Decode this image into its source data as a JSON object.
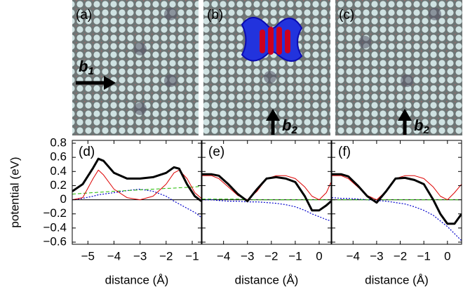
{
  "panels": [
    {
      "label": "(a)",
      "arrow_label": "b",
      "arrow_subscript": "1"
    },
    {
      "label": "(b)",
      "arrow_label": "b",
      "arrow_subscript": "2"
    },
    {
      "label": "(c)",
      "arrow_label": "b",
      "arrow_subscript": "2"
    }
  ],
  "chart_data": [
    {
      "type": "line",
      "label": "(d)",
      "ylabel": "potential (eV)",
      "xlabel": "distance (Å)",
      "xlim": [
        -5.6,
        -0.65
      ],
      "ylim": [
        -0.63,
        0.84
      ],
      "hline": 0,
      "xticks": [
        {
          "value": -5,
          "label": "−5"
        },
        {
          "value": -4,
          "label": "−4"
        },
        {
          "value": -3,
          "label": "−3"
        },
        {
          "value": -2,
          "label": "−2"
        },
        {
          "value": -1,
          "label": "−1"
        }
      ],
      "yticks": [
        0.8,
        0.6,
        0.4,
        0.2,
        0,
        {
          "value": -0.2,
          "label": "−0.2"
        },
        {
          "value": -0.4,
          "label": "−0.4"
        },
        {
          "value": -0.6,
          "label": "−0.6"
        }
      ],
      "ytick_labels": true,
      "x": [
        -5.6,
        -5.2,
        -4.8,
        -4.6,
        -4.4,
        -4.0,
        -3.5,
        -3.0,
        -2.5,
        -2.0,
        -1.7,
        -1.5,
        -1.2,
        -0.9,
        -0.65
      ],
      "series": [
        {
          "color": "#0000cc",
          "style": "dotted",
          "width": 1.2,
          "values": [
            0.0,
            0.02,
            0.05,
            0.07,
            0.08,
            0.1,
            0.13,
            0.15,
            0.12,
            0.05,
            -0.02,
            -0.06,
            -0.12,
            -0.18,
            -0.25
          ]
        },
        {
          "color": "#22bb00",
          "style": "dashed",
          "width": 1,
          "values": [
            0.08,
            0.09,
            0.1,
            0.105,
            0.11,
            0.12,
            0.13,
            0.14,
            0.15,
            0.16,
            0.165,
            0.17,
            0.175,
            0.18,
            0.19
          ]
        },
        {
          "color": "#dd0000",
          "style": "solid",
          "width": 1,
          "values": [
            0.0,
            0.03,
            0.3,
            0.42,
            0.35,
            0.15,
            0.03,
            0.0,
            0.05,
            0.22,
            0.38,
            0.42,
            0.3,
            0.1,
            0.02
          ]
        },
        {
          "color": "#000000",
          "style": "solid",
          "width": 3,
          "values": [
            0.12,
            0.22,
            0.45,
            0.58,
            0.55,
            0.38,
            0.3,
            0.3,
            0.32,
            0.38,
            0.46,
            0.44,
            0.22,
            0.05,
            -0.02
          ]
        }
      ]
    },
    {
      "type": "line",
      "label": "(e)",
      "xlabel": "distance (Å)",
      "xlim": [
        -4.9,
        0.5
      ],
      "ylim": [
        -0.63,
        0.84
      ],
      "hline": 0,
      "xticks": [
        {
          "value": -4,
          "label": "−4"
        },
        {
          "value": -3,
          "label": "−3"
        },
        {
          "value": -2,
          "label": "−2"
        },
        {
          "value": -1,
          "label": "−1"
        },
        0
      ],
      "yticks": [
        0.8,
        0.6,
        0.4,
        0.2,
        0,
        -0.2,
        -0.4,
        -0.6
      ],
      "ytick_labels": false,
      "x": [
        -4.9,
        -4.5,
        -4.2,
        -3.8,
        -3.4,
        -3.0,
        -2.6,
        -2.2,
        -1.8,
        -1.4,
        -1.0,
        -0.6,
        -0.3,
        0.0,
        0.3,
        0.5
      ],
      "series": [
        {
          "color": "#0000cc",
          "style": "dotted",
          "width": 1.2,
          "values": [
            0.0,
            0.0,
            -0.01,
            -0.02,
            -0.02,
            -0.03,
            -0.03,
            -0.04,
            -0.05,
            -0.07,
            -0.1,
            -0.15,
            -0.2,
            -0.24,
            -0.28,
            -0.3
          ]
        },
        {
          "color": "#22bb00",
          "style": "dashed",
          "width": 1,
          "values": [
            0.01,
            0.01,
            0.01,
            0.01,
            0.01,
            0.0,
            0.0,
            0.0,
            0.0,
            0.0,
            0.0,
            0.0,
            0.0,
            0.0,
            0.0,
            0.0
          ]
        },
        {
          "color": "#dd0000",
          "style": "solid",
          "width": 1,
          "values": [
            0.34,
            0.34,
            0.3,
            0.18,
            0.06,
            0.0,
            0.12,
            0.3,
            0.34,
            0.34,
            0.3,
            0.18,
            0.05,
            0.0,
            0.1,
            0.25
          ]
        },
        {
          "color": "#000000",
          "style": "solid",
          "width": 3,
          "values": [
            0.36,
            0.36,
            0.34,
            0.22,
            0.08,
            -0.02,
            0.15,
            0.3,
            0.32,
            0.3,
            0.25,
            0.05,
            -0.15,
            -0.15,
            -0.08,
            -0.02
          ]
        }
      ]
    },
    {
      "type": "line",
      "label": "(f)",
      "xlabel": "distance (Å)",
      "xlim": [
        -4.9,
        0.6
      ],
      "ylim": [
        -0.63,
        0.84
      ],
      "hline": 0,
      "xticks": [
        {
          "value": -4,
          "label": "−4"
        },
        {
          "value": -3,
          "label": "−3"
        },
        {
          "value": -2,
          "label": "−2"
        },
        {
          "value": -1,
          "label": "−1"
        },
        0
      ],
      "yticks": [
        0.8,
        0.6,
        0.4,
        0.2,
        0,
        -0.2,
        -0.4,
        -0.6
      ],
      "ytick_labels": false,
      "x": [
        -4.9,
        -4.5,
        -4.2,
        -3.8,
        -3.4,
        -3.0,
        -2.6,
        -2.2,
        -1.8,
        -1.4,
        -1.0,
        -0.6,
        -0.3,
        0.0,
        0.3,
        0.6
      ],
      "series": [
        {
          "color": "#0000cc",
          "style": "dotted",
          "width": 1.2,
          "values": [
            0.03,
            0.02,
            0.02,
            0.01,
            0.0,
            -0.01,
            -0.02,
            -0.04,
            -0.06,
            -0.1,
            -0.15,
            -0.22,
            -0.3,
            -0.38,
            -0.48,
            -0.58
          ]
        },
        {
          "color": "#22bb00",
          "style": "dashed",
          "width": 1,
          "values": [
            0.0,
            0.0,
            0.0,
            0.0,
            0.0,
            0.0,
            0.0,
            0.0,
            0.0,
            0.0,
            0.0,
            0.0,
            0.0,
            0.0,
            0.0,
            0.0
          ]
        },
        {
          "color": "#dd0000",
          "style": "solid",
          "width": 1,
          "values": [
            0.34,
            0.34,
            0.3,
            0.18,
            0.06,
            0.0,
            0.12,
            0.3,
            0.34,
            0.34,
            0.3,
            0.18,
            0.05,
            0.0,
            0.1,
            0.22
          ]
        },
        {
          "color": "#000000",
          "style": "solid",
          "width": 3,
          "values": [
            0.36,
            0.36,
            0.33,
            0.2,
            0.05,
            -0.04,
            0.12,
            0.3,
            0.31,
            0.28,
            0.22,
            0.0,
            -0.2,
            -0.34,
            -0.34,
            -0.2
          ]
        }
      ]
    }
  ]
}
